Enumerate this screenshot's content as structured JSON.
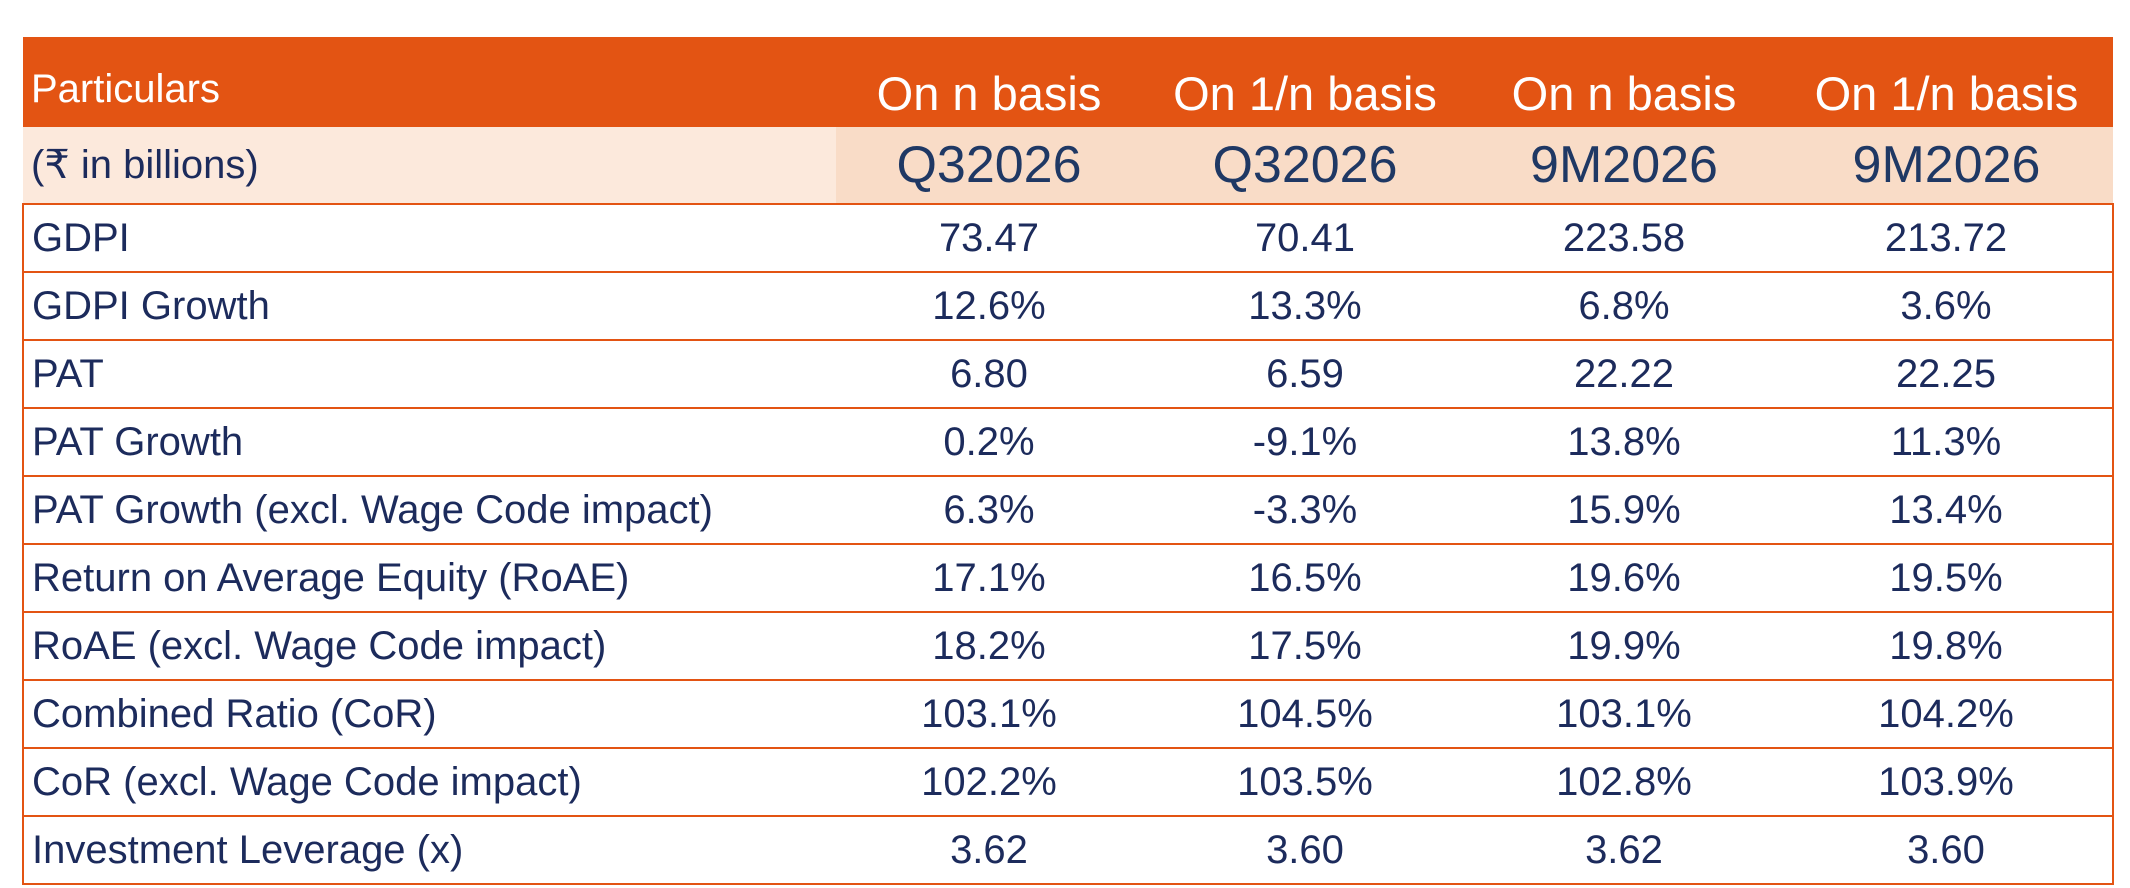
{
  "table": {
    "header": [
      "Particulars",
      "On n basis",
      "On 1/n basis",
      "On n basis",
      "On 1/n basis"
    ],
    "subheader": [
      "(₹ in billions)",
      "Q32026",
      "Q32026",
      "9M2026",
      "9M2026"
    ],
    "rows": [
      [
        "GDPI",
        "73.47",
        "70.41",
        "223.58",
        "213.72"
      ],
      [
        "GDPI Growth",
        "12.6%",
        "13.3%",
        "6.8%",
        "3.6%"
      ],
      [
        "PAT",
        "6.80",
        "6.59",
        "22.22",
        "22.25"
      ],
      [
        "PAT Growth",
        "0.2%",
        "-9.1%",
        "13.8%",
        "11.3%"
      ],
      [
        "PAT Growth (excl. Wage Code impact)",
        "6.3%",
        "-3.3%",
        "15.9%",
        "13.4%"
      ],
      [
        "Return on Average Equity (RoAE)",
        "17.1%",
        "16.5%",
        "19.6%",
        "19.5%"
      ],
      [
        "RoAE (excl. Wage Code impact)",
        "18.2%",
        "17.5%",
        "19.9%",
        "19.8%"
      ],
      [
        "Combined Ratio (CoR)",
        "103.1%",
        "104.5%",
        "103.1%",
        "104.2%"
      ],
      [
        "CoR (excl. Wage Code impact)",
        "102.2%",
        "103.5%",
        "102.8%",
        "103.9%"
      ],
      [
        "Investment Leverage (x)",
        "3.62",
        "3.60",
        "3.62",
        "3.60"
      ]
    ]
  }
}
